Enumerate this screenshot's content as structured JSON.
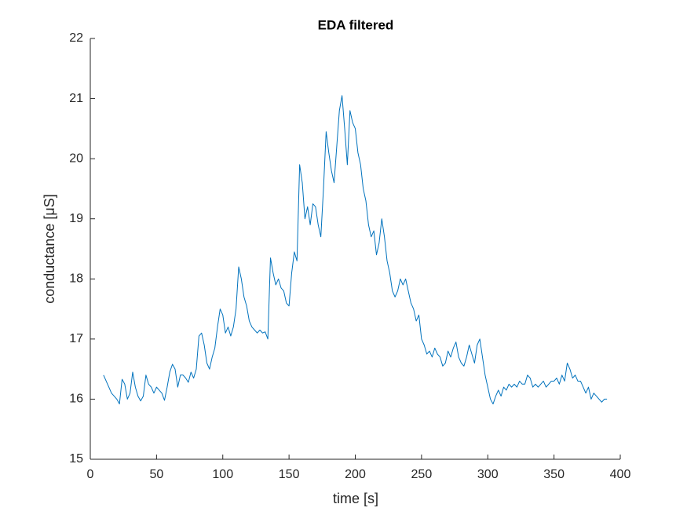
{
  "chart_data": {
    "type": "line",
    "title": "EDA filtered",
    "x_label": "time [s]",
    "y_label": "conductance [μS]",
    "x": [
      10,
      12,
      14,
      16,
      18,
      20,
      22,
      24,
      26,
      28,
      30,
      32,
      34,
      36,
      38,
      40,
      42,
      44,
      46,
      48,
      50,
      52,
      54,
      56,
      58,
      60,
      62,
      64,
      66,
      68,
      70,
      72,
      74,
      76,
      78,
      80,
      82,
      84,
      86,
      88,
      90,
      92,
      94,
      96,
      98,
      100,
      102,
      104,
      106,
      108,
      110,
      112,
      114,
      116,
      118,
      120,
      122,
      124,
      126,
      128,
      130,
      132,
      134,
      136,
      138,
      140,
      142,
      144,
      146,
      148,
      150,
      152,
      154,
      156,
      158,
      160,
      162,
      164,
      166,
      168,
      170,
      172,
      174,
      176,
      178,
      180,
      182,
      184,
      186,
      188,
      190,
      192,
      194,
      196,
      198,
      200,
      202,
      204,
      206,
      208,
      210,
      212,
      214,
      216,
      218,
      220,
      222,
      224,
      226,
      228,
      230,
      232,
      234,
      236,
      238,
      240,
      242,
      244,
      246,
      248,
      250,
      252,
      254,
      256,
      258,
      260,
      262,
      264,
      266,
      268,
      270,
      272,
      274,
      276,
      278,
      280,
      282,
      284,
      286,
      288,
      290,
      292,
      294,
      296,
      298,
      300,
      302,
      304,
      306,
      308,
      310,
      312,
      314,
      316,
      318,
      320,
      322,
      324,
      326,
      328,
      330,
      332,
      334,
      336,
      338,
      340,
      342,
      344,
      346,
      348,
      350,
      352,
      354,
      356,
      358,
      360,
      362,
      364,
      366,
      368,
      370,
      372,
      374,
      376,
      378,
      380,
      382,
      384,
      386,
      388,
      390
    ],
    "series": [
      {
        "name": "EDA",
        "color": "#0072bd",
        "values": [
          16.4,
          16.3,
          16.2,
          16.1,
          16.05,
          16.0,
          15.92,
          16.33,
          16.25,
          16.0,
          16.1,
          16.45,
          16.2,
          16.05,
          15.97,
          16.05,
          16.4,
          16.25,
          16.2,
          16.1,
          16.2,
          16.15,
          16.1,
          15.98,
          16.2,
          16.45,
          16.58,
          16.5,
          16.2,
          16.4,
          16.4,
          16.35,
          16.28,
          16.45,
          16.35,
          16.5,
          17.05,
          17.1,
          16.9,
          16.6,
          16.5,
          16.7,
          16.85,
          17.2,
          17.5,
          17.4,
          17.1,
          17.2,
          17.05,
          17.2,
          17.5,
          18.2,
          18.0,
          17.7,
          17.55,
          17.3,
          17.2,
          17.15,
          17.1,
          17.15,
          17.1,
          17.12,
          17.0,
          18.35,
          18.1,
          17.9,
          18.0,
          17.85,
          17.8,
          17.6,
          17.55,
          18.1,
          18.45,
          18.3,
          19.9,
          19.6,
          19.0,
          19.2,
          18.9,
          19.25,
          19.2,
          18.9,
          18.7,
          19.5,
          20.45,
          20.1,
          19.8,
          19.6,
          20.2,
          20.8,
          21.05,
          20.5,
          19.9,
          20.8,
          20.6,
          20.5,
          20.1,
          19.9,
          19.5,
          19.3,
          18.9,
          18.7,
          18.8,
          18.4,
          18.6,
          19.0,
          18.7,
          18.3,
          18.1,
          17.8,
          17.7,
          17.8,
          18.0,
          17.9,
          18.0,
          17.8,
          17.6,
          17.5,
          17.3,
          17.4,
          17.0,
          16.9,
          16.75,
          16.8,
          16.7,
          16.85,
          16.75,
          16.7,
          16.55,
          16.6,
          16.8,
          16.7,
          16.85,
          16.95,
          16.7,
          16.6,
          16.55,
          16.7,
          16.9,
          16.75,
          16.6,
          16.9,
          17.0,
          16.7,
          16.4,
          16.2,
          16.0,
          15.92,
          16.05,
          16.15,
          16.05,
          16.2,
          16.15,
          16.25,
          16.2,
          16.25,
          16.2,
          16.3,
          16.25,
          16.25,
          16.4,
          16.35,
          16.2,
          16.25,
          16.2,
          16.25,
          16.3,
          16.2,
          16.25,
          16.3,
          16.3,
          16.35,
          16.25,
          16.4,
          16.3,
          16.6,
          16.5,
          16.35,
          16.4,
          16.3,
          16.3,
          16.2,
          16.1,
          16.2,
          16.0,
          16.1,
          16.05,
          16.0,
          15.95,
          16.0,
          16.0
        ]
      }
    ],
    "xlim": [
      0,
      400
    ],
    "xticks": [
      0,
      50,
      100,
      150,
      200,
      250,
      300,
      350,
      400
    ],
    "ylim": [
      15,
      22
    ],
    "yticks": [
      15,
      16,
      17,
      18,
      19,
      20,
      21,
      22
    ]
  }
}
